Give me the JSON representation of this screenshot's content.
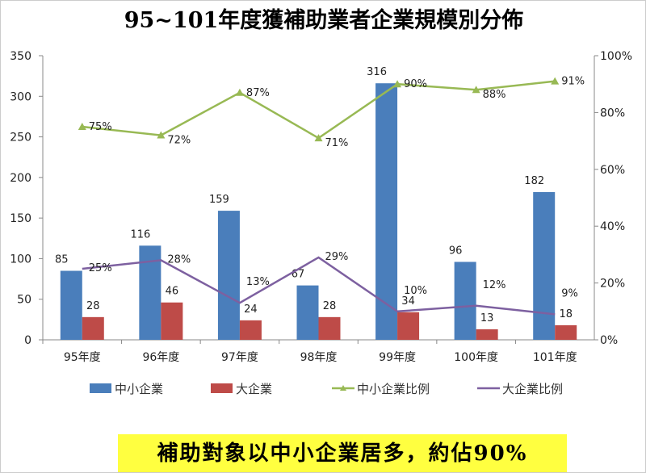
{
  "chart_data": {
    "type": "bar+line",
    "title": "95~101年度獲補助業者企業規模別分佈",
    "categories": [
      "95年度",
      "96年度",
      "97年度",
      "98年度",
      "99年度",
      "100年度",
      "101年度"
    ],
    "series": [
      {
        "name": "中小企業",
        "type": "bar",
        "axis": "left",
        "color": "#4a7ebb",
        "values": [
          85,
          116,
          159,
          67,
          316,
          96,
          182
        ]
      },
      {
        "name": "大企業",
        "type": "bar",
        "axis": "left",
        "color": "#be4b48",
        "values": [
          28,
          46,
          24,
          28,
          34,
          13,
          18
        ]
      },
      {
        "name": "中小企業比例",
        "type": "line",
        "axis": "right",
        "color": "#98b954",
        "marker": "triangle",
        "values": [
          75,
          72,
          87,
          71,
          90,
          88,
          91
        ]
      },
      {
        "name": "大企業比例",
        "type": "line",
        "axis": "right",
        "color": "#7d60a0",
        "values": [
          25,
          28,
          13,
          29,
          10,
          12,
          9
        ]
      }
    ],
    "left_axis": {
      "ylim": [
        0,
        350
      ],
      "ticks": [
        "0",
        "50",
        "100",
        "150",
        "200",
        "250",
        "300",
        "350"
      ]
    },
    "right_axis": {
      "ylim": [
        0,
        100
      ],
      "ticks": [
        "0%",
        "20%",
        "40%",
        "60%",
        "80%",
        "100%"
      ]
    },
    "grid": false,
    "legend": "bottom"
  },
  "caption": "補助對象以中小企業居多，約佔90%"
}
